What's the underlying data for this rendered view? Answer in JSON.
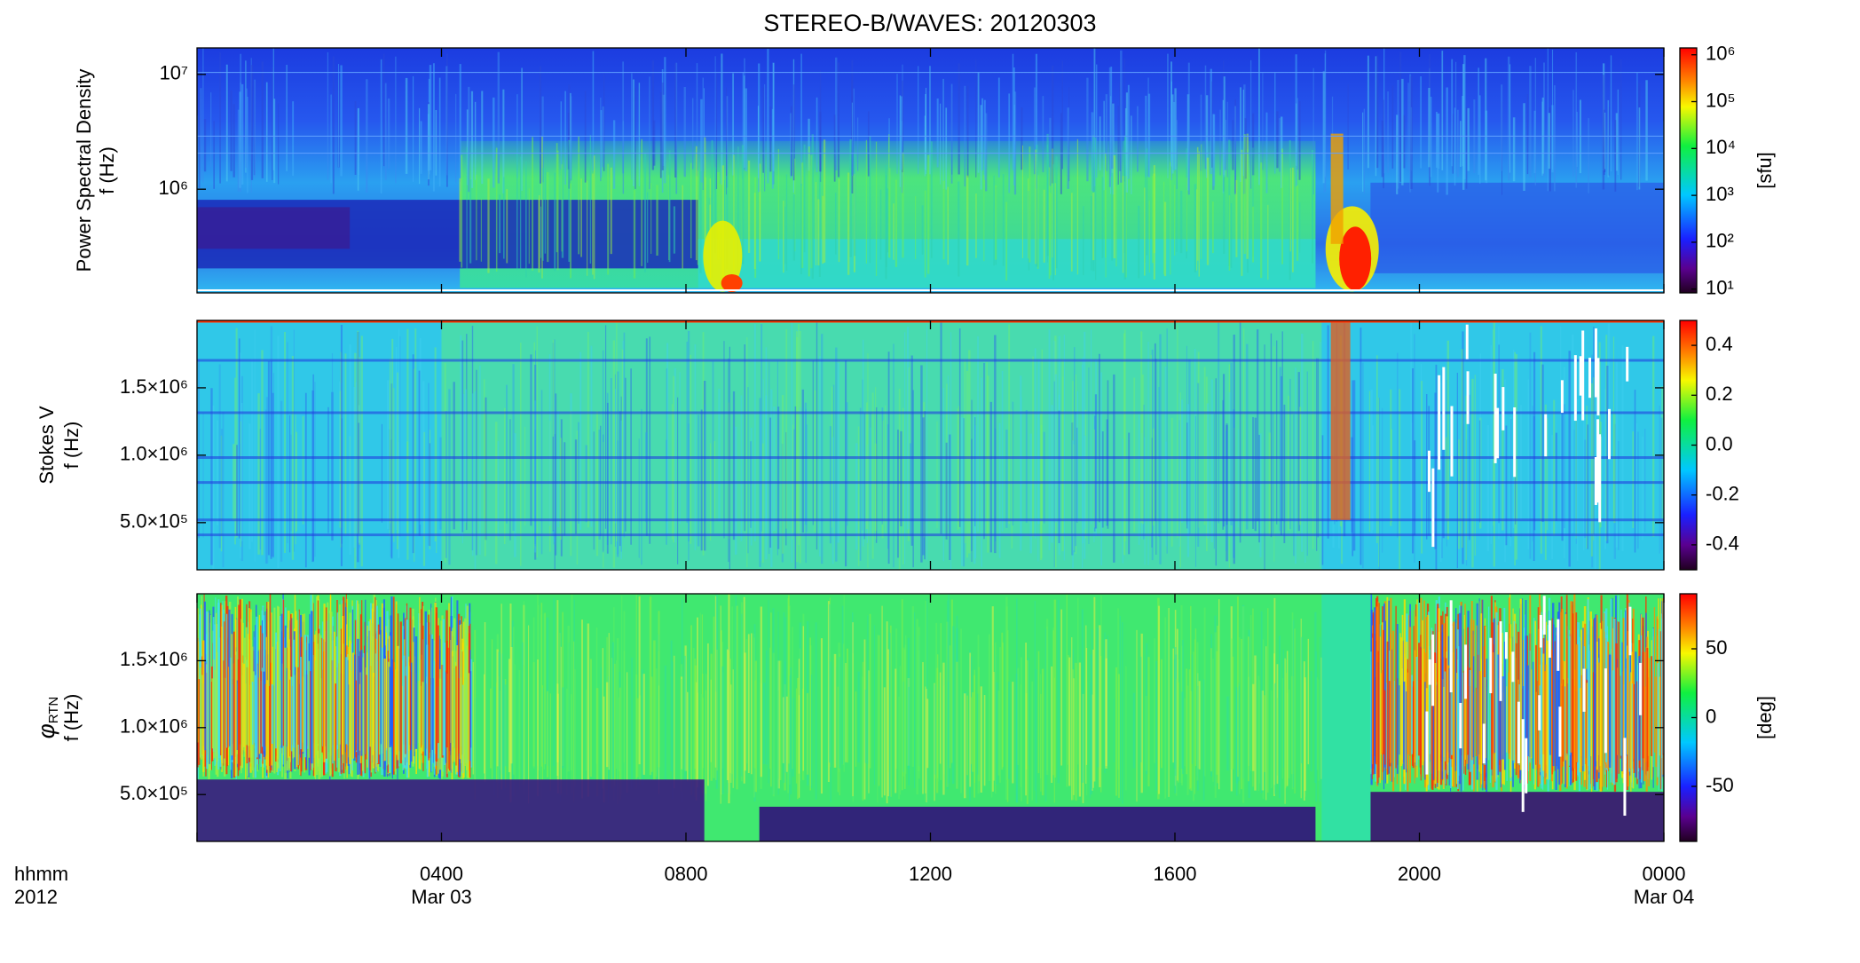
{
  "chart_data": [
    {
      "type": "heatmap",
      "title": "STEREO-B/WAVES: 20120303",
      "ylabel": "Power Spectral Density",
      "ylabel2": "f (Hz)",
      "ylog": true,
      "ylim": [
        125000,
        17000000
      ],
      "yticks": [
        {
          "value": 1000000,
          "label": "10⁶"
        },
        {
          "value": 10000000,
          "label": "10⁷"
        }
      ],
      "xlim": [
        0,
        24
      ],
      "xticks": [
        4,
        8,
        12,
        16,
        20,
        24
      ],
      "colorbar": {
        "log": true,
        "lim": [
          8.3,
          1400000
        ],
        "label": "[sfu]",
        "ticks": [
          {
            "value": 10,
            "label": "10¹"
          },
          {
            "value": 100,
            "label": "10²"
          },
          {
            "value": 1000,
            "label": "10³"
          },
          {
            "value": 10000,
            "label": "10⁴"
          },
          {
            "value": 100000,
            "label": "10⁵"
          },
          {
            "value": 1000000,
            "label": "10⁶"
          }
        ]
      }
    },
    {
      "type": "heatmap",
      "ylabel": "Stokes V",
      "ylabel2": "f (Hz)",
      "ylim": [
        150000,
        2000000
      ],
      "yticks": [
        {
          "value": 500000,
          "label": "5.0×10⁵"
        },
        {
          "value": 1000000,
          "label": "1.0×10⁶"
        },
        {
          "value": 1500000,
          "label": "1.5×10⁶"
        }
      ],
      "xlim": [
        0,
        24
      ],
      "xticks": [
        4,
        8,
        12,
        16,
        20,
        24
      ],
      "colorbar": {
        "lim": [
          -0.5,
          0.5
        ],
        "ticks": [
          -0.4,
          -0.2,
          {
            "value": 0,
            "label": "0.0"
          },
          0.2,
          0.4
        ]
      }
    },
    {
      "type": "heatmap",
      "ylabel": "φ",
      "ylabel_sub": "RTN",
      "ylabel2": "f (Hz)",
      "ylim": [
        150000,
        2000000
      ],
      "yticks": [
        {
          "value": 500000,
          "label": "5.0×10⁵"
        },
        {
          "value": 1000000,
          "label": "1.0×10⁶"
        },
        {
          "value": 1500000,
          "label": "1.5×10⁶"
        }
      ],
      "xlim": [
        0,
        24
      ],
      "xticks": [
        {
          "value": 0,
          "label": "hhmm"
        },
        {
          "value": 4,
          "label": "0400"
        },
        {
          "value": 8,
          "label": "0800"
        },
        {
          "value": 12,
          "label": "1200"
        },
        {
          "value": 16,
          "label": "1600"
        },
        {
          "value": 20,
          "label": "2000"
        },
        {
          "value": 24,
          "label": "0000"
        }
      ],
      "xlabel2": "2012",
      "date_labels": [
        {
          "value": 4,
          "label": "Mar 03"
        },
        {
          "value": 24,
          "label": "Mar 04"
        }
      ],
      "colorbar": {
        "lim": [
          -90,
          90
        ],
        "label": "[deg]",
        "ticks": [
          -50,
          0,
          50
        ]
      }
    }
  ]
}
